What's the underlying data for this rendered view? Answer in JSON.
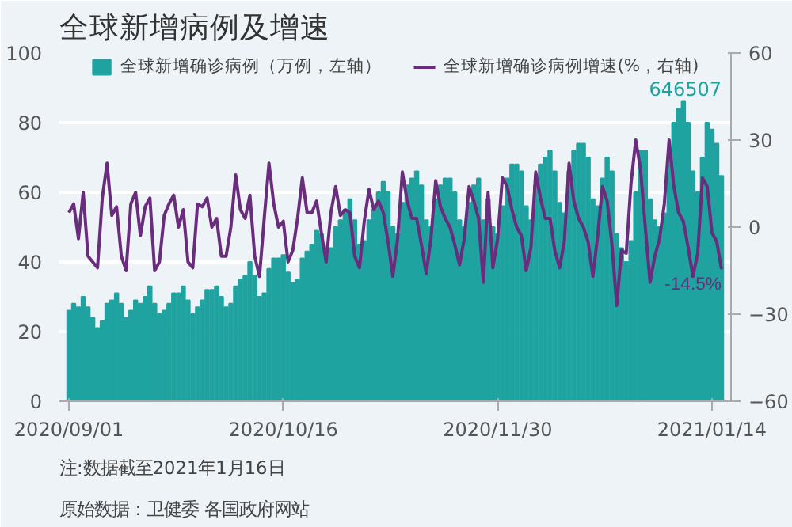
{
  "chart_data": {
    "type": "bar",
    "title": "全球新增病例及增速",
    "x": [
      "2020-09-01",
      "2020-09-02",
      "2020-09-03",
      "2020-09-04",
      "2020-09-05",
      "2020-09-06",
      "2020-09-07",
      "2020-09-08",
      "2020-09-09",
      "2020-09-10",
      "2020-09-11",
      "2020-09-12",
      "2020-09-13",
      "2020-09-14",
      "2020-09-15",
      "2020-09-16",
      "2020-09-17",
      "2020-09-18",
      "2020-09-19",
      "2020-09-20",
      "2020-09-21",
      "2020-09-22",
      "2020-09-23",
      "2020-09-24",
      "2020-09-25",
      "2020-09-26",
      "2020-09-27",
      "2020-09-28",
      "2020-09-29",
      "2020-09-30",
      "2020-10-01",
      "2020-10-02",
      "2020-10-03",
      "2020-10-04",
      "2020-10-05",
      "2020-10-06",
      "2020-10-07",
      "2020-10-08",
      "2020-10-09",
      "2020-10-10",
      "2020-10-11",
      "2020-10-12",
      "2020-10-13",
      "2020-10-14",
      "2020-10-15",
      "2020-10-16",
      "2020-10-17",
      "2020-10-18",
      "2020-10-19",
      "2020-10-20",
      "2020-10-21",
      "2020-10-22",
      "2020-10-23",
      "2020-10-24",
      "2020-10-25",
      "2020-10-26",
      "2020-10-27",
      "2020-10-28",
      "2020-10-29",
      "2020-10-30",
      "2020-10-31",
      "2020-11-01",
      "2020-11-02",
      "2020-11-03",
      "2020-11-04",
      "2020-11-05",
      "2020-11-06",
      "2020-11-07",
      "2020-11-08",
      "2020-11-09",
      "2020-11-10",
      "2020-11-11",
      "2020-11-12",
      "2020-11-13",
      "2020-11-14",
      "2020-11-15",
      "2020-11-16",
      "2020-11-17",
      "2020-11-18",
      "2020-11-19",
      "2020-11-20",
      "2020-11-21",
      "2020-11-22",
      "2020-11-23",
      "2020-11-24",
      "2020-11-25",
      "2020-11-26",
      "2020-11-27",
      "2020-11-28",
      "2020-11-29",
      "2020-11-30",
      "2020-12-01",
      "2020-12-02",
      "2020-12-03",
      "2020-12-04",
      "2020-12-05",
      "2020-12-06",
      "2020-12-07",
      "2020-12-08",
      "2020-12-09",
      "2020-12-10",
      "2020-12-11",
      "2020-12-12",
      "2020-12-13",
      "2020-12-14",
      "2020-12-15",
      "2020-12-16",
      "2020-12-17",
      "2020-12-18",
      "2020-12-19",
      "2020-12-20",
      "2020-12-21",
      "2020-12-22",
      "2020-12-23",
      "2020-12-24",
      "2020-12-25",
      "2020-12-26",
      "2020-12-27",
      "2020-12-28",
      "2020-12-29",
      "2020-12-30",
      "2020-12-31",
      "2021-01-01",
      "2021-01-02",
      "2021-01-03",
      "2021-01-04",
      "2021-01-05",
      "2021-01-06",
      "2021-01-07",
      "2021-01-08",
      "2021-01-09",
      "2021-01-10",
      "2021-01-11",
      "2021-01-12",
      "2021-01-13",
      "2021-01-14",
      "2021-01-15",
      "2021-01-16"
    ],
    "xlim": [
      "2020-08-30",
      "2021-01-18"
    ],
    "xticks": [
      {
        "value": "2020-09-01",
        "label": "2020/09/01"
      },
      {
        "value": "2020-10-16",
        "label": "2020/10/16"
      },
      {
        "value": "2020-11-30",
        "label": "2020/11/30"
      },
      {
        "value": "2021-01-14",
        "label": "2021/01/14"
      }
    ],
    "ylim": [
      0,
      100
    ],
    "yticks": [
      0,
      20,
      40,
      60,
      80,
      100
    ],
    "y2lim": [
      -60,
      60
    ],
    "y2ticks": [
      -60,
      -30,
      0,
      30,
      60
    ],
    "grid": "y",
    "legend": "top",
    "series": [
      {
        "name": "全球新增确诊病例（万例，左轴）",
        "color": "#1fa3a0",
        "values": [
          26,
          28,
          27,
          30,
          27,
          24,
          21,
          23,
          28,
          29,
          31,
          28,
          24,
          26,
          29,
          28,
          30,
          33,
          28,
          25,
          26,
          28,
          31,
          31,
          33,
          29,
          25,
          27,
          29,
          32,
          32,
          33,
          30,
          27,
          28,
          33,
          35,
          36,
          40,
          36,
          30,
          31,
          38,
          41,
          41,
          42,
          37,
          34,
          35,
          41,
          43,
          45,
          49,
          48,
          42,
          44,
          50,
          52,
          55,
          58,
          52,
          45,
          46,
          52,
          55,
          60,
          63,
          60,
          50,
          48,
          57,
          62,
          64,
          66,
          62,
          52,
          50,
          58,
          62,
          64,
          64,
          60,
          52,
          50,
          57,
          62,
          64,
          52,
          58,
          50,
          48,
          56,
          64,
          68,
          68,
          66,
          56,
          52,
          62,
          68,
          70,
          72,
          66,
          57,
          54,
          66,
          72,
          74,
          74,
          70,
          58,
          56,
          64,
          70,
          66,
          48,
          44,
          40,
          46,
          60,
          72,
          72,
          58,
          52,
          50,
          54,
          70,
          80,
          84,
          86,
          80,
          66,
          60,
          70,
          80,
          78,
          74,
          64.7
        ]
      },
      {
        "name": "全球新增确诊病例增速(%，右轴)",
        "type": "line",
        "axis": "y2",
        "color": "#6a2c7c",
        "values": [
          5,
          8,
          -4,
          12,
          -10,
          -12,
          -14,
          10,
          22,
          4,
          7,
          -10,
          -15,
          8,
          12,
          -3,
          7,
          10,
          -15,
          -12,
          4,
          8,
          11,
          0,
          6,
          -12,
          -14,
          8,
          7,
          10,
          0,
          3,
          -10,
          -10,
          0,
          18,
          6,
          3,
          11,
          -10,
          -17,
          3,
          22,
          8,
          0,
          2,
          -12,
          -8,
          3,
          17,
          5,
          5,
          9,
          -2,
          -12,
          5,
          14,
          4,
          6,
          5,
          -10,
          -14,
          2,
          13,
          6,
          9,
          5,
          -5,
          -17,
          -4,
          19,
          9,
          3,
          3,
          -6,
          -16,
          -4,
          16,
          7,
          3,
          0,
          -6,
          -13,
          -4,
          14,
          9,
          3,
          -19,
          12,
          -14,
          -4,
          17,
          14,
          6,
          0,
          -3,
          -15,
          -7,
          19,
          10,
          3,
          3,
          -8,
          -14,
          -5,
          22,
          9,
          3,
          0,
          -5,
          -17,
          -3,
          14,
          9,
          -6,
          -27,
          -8,
          -9,
          15,
          30,
          20,
          0,
          -19,
          -10,
          -4,
          8,
          30,
          14,
          5,
          2,
          -7,
          -17,
          -9,
          17,
          14,
          -2,
          -5,
          -14.5
        ],
        "value_labels": [
          null,
          null,
          null,
          null,
          null,
          null,
          null,
          null,
          null,
          null,
          null,
          null,
          null,
          null,
          null,
          null,
          null,
          null,
          null,
          null,
          null,
          null,
          null,
          null,
          null,
          null,
          null,
          null,
          null,
          null,
          null,
          null,
          null,
          null,
          null,
          null,
          null,
          null,
          null,
          null,
          null,
          null,
          null,
          null,
          null,
          null,
          null,
          null,
          null,
          null,
          null,
          null,
          null,
          null,
          null,
          null,
          null,
          null,
          null,
          null,
          null,
          null,
          null,
          null,
          null,
          null,
          null,
          null,
          null,
          null,
          null,
          null,
          null,
          null,
          null,
          null,
          null,
          null,
          null,
          null,
          null,
          null,
          null,
          null,
          null,
          null,
          null,
          null,
          null,
          null,
          null,
          null,
          null,
          null,
          null,
          null,
          null,
          null,
          null,
          null,
          null,
          null,
          null,
          null,
          null,
          null,
          null,
          null,
          null,
          null,
          null,
          null,
          null,
          null,
          null,
          null,
          null,
          null,
          null,
          null,
          null,
          null,
          null,
          null,
          null,
          null,
          null,
          null,
          null,
          null,
          null,
          null,
          null,
          null,
          null,
          null,
          null,
          "-14.5%"
        ]
      }
    ],
    "annotations": [
      "646507",
      "原始数据：卫健委 各国政府网站",
      "注:数据截至2021年1月16日"
    ]
  }
}
